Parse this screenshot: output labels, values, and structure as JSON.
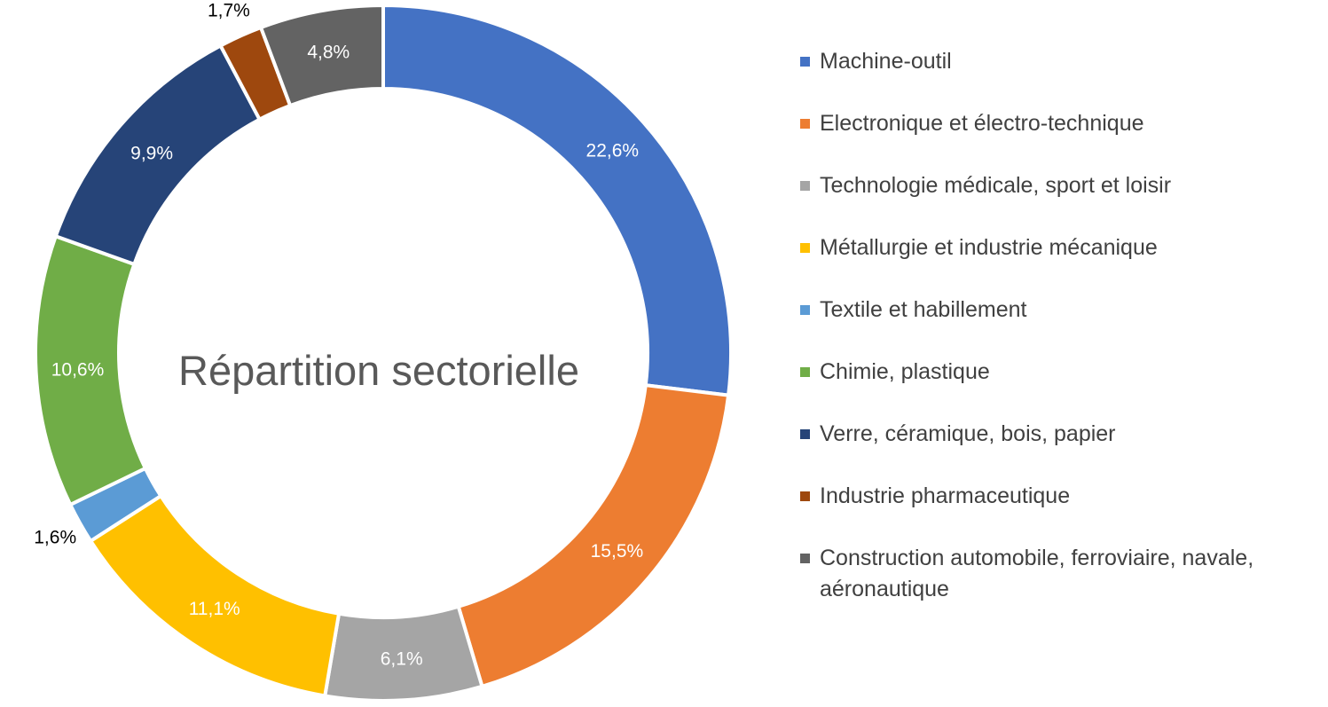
{
  "chart_data": {
    "type": "pie",
    "variant": "donut",
    "title": "Répartition sectorielle",
    "legend_position": "right",
    "series": [
      {
        "name": "Machine-outil",
        "value": 22.6,
        "label": "22,6%",
        "color": "#4472C4",
        "label_style": "inside"
      },
      {
        "name": "Electronique et électro-technique",
        "value": 15.5,
        "label": "15,5%",
        "color": "#ED7D31",
        "label_style": "inside"
      },
      {
        "name": "Technologie médicale, sport et loisir",
        "value": 6.1,
        "label": "6,1%",
        "color": "#A5A5A5",
        "label_style": "inside"
      },
      {
        "name": "Métallurgie et industrie mécanique",
        "value": 11.1,
        "label": "11,1%",
        "color": "#FFC000",
        "label_style": "inside"
      },
      {
        "name": "Textile et habillement",
        "value": 1.6,
        "label": "1,6%",
        "color": "#5B9BD5",
        "label_style": "outside"
      },
      {
        "name": "Chimie, plastique",
        "value": 10.6,
        "label": "10,6%",
        "color": "#70AD47",
        "label_style": "inside"
      },
      {
        "name": "Verre, céramique, bois, papier",
        "value": 9.9,
        "label": "9,9%",
        "color": "#264478",
        "label_style": "inside"
      },
      {
        "name": "Industrie pharmaceutique",
        "value": 1.7,
        "label": "1,7%",
        "color": "#9E480E",
        "label_style": "outside"
      },
      {
        "name": "Construction automobile, ferroviaire, navale, aéronautique",
        "value": 4.8,
        "label": "4,8%",
        "color": "#636363",
        "label_style": "inside"
      }
    ]
  }
}
